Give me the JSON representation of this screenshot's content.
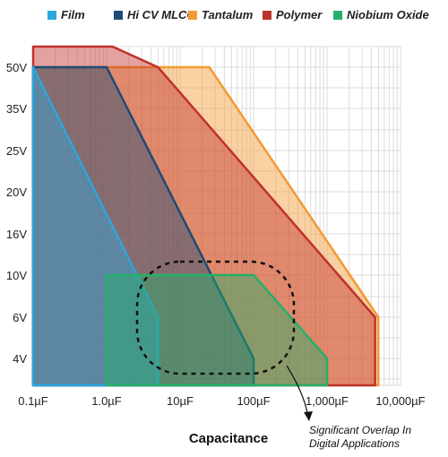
{
  "chart_data": {
    "type": "area",
    "title": "",
    "xlabel": "Capacitance",
    "ylabel": "",
    "x_scale": "log",
    "y_scale": "categorical",
    "grid": true,
    "legend_position": "top",
    "x_ticks": [
      {
        "label": "0.1µF",
        "value": 0.1
      },
      {
        "label": "1.0µF",
        "value": 1
      },
      {
        "label": "10µF",
        "value": 10
      },
      {
        "label": "100µF",
        "value": 100
      },
      {
        "label": "1,000µF",
        "value": 1000
      },
      {
        "label": "10,000µF",
        "value": 10000
      }
    ],
    "y_ticks": [
      "4V",
      "6V",
      "10V",
      "16V",
      "20V",
      "25V",
      "35V",
      "50V"
    ],
    "series": [
      {
        "name": "Tantalum",
        "color": "#f39a34",
        "points": [
          [
            0.1,
            "4V"
          ],
          [
            0.1,
            "50V"
          ],
          [
            25,
            "50V"
          ],
          [
            5000,
            "6V"
          ],
          [
            5000,
            "4V"
          ]
        ]
      },
      {
        "name": "Polymer",
        "color": "#c0312b",
        "points": [
          [
            0.1,
            "4V"
          ],
          [
            0.1,
            "63V"
          ],
          [
            1.2,
            "63V"
          ],
          [
            5,
            "50V"
          ],
          [
            4500,
            "6V"
          ],
          [
            4500,
            "4V"
          ]
        ]
      },
      {
        "name": "Hi CV MLCC",
        "color": "#1c4c76",
        "points": [
          [
            0.1,
            "4V"
          ],
          [
            0.1,
            "50V"
          ],
          [
            1,
            "50V"
          ],
          [
            100,
            "4V"
          ]
        ]
      },
      {
        "name": "Film",
        "color": "#2ba6df",
        "points": [
          [
            0.1,
            "4V"
          ],
          [
            0.1,
            "50V"
          ],
          [
            5,
            "6V"
          ],
          [
            5,
            "4V"
          ]
        ]
      },
      {
        "name": "Niobium Oxide",
        "color": "#23b06a",
        "points": [
          [
            1,
            "4V"
          ],
          [
            1,
            "10V"
          ],
          [
            100,
            "10V"
          ],
          [
            1000,
            "4V"
          ]
        ]
      }
    ],
    "annotation": "Significant Overlap In Digital Applications"
  }
}
